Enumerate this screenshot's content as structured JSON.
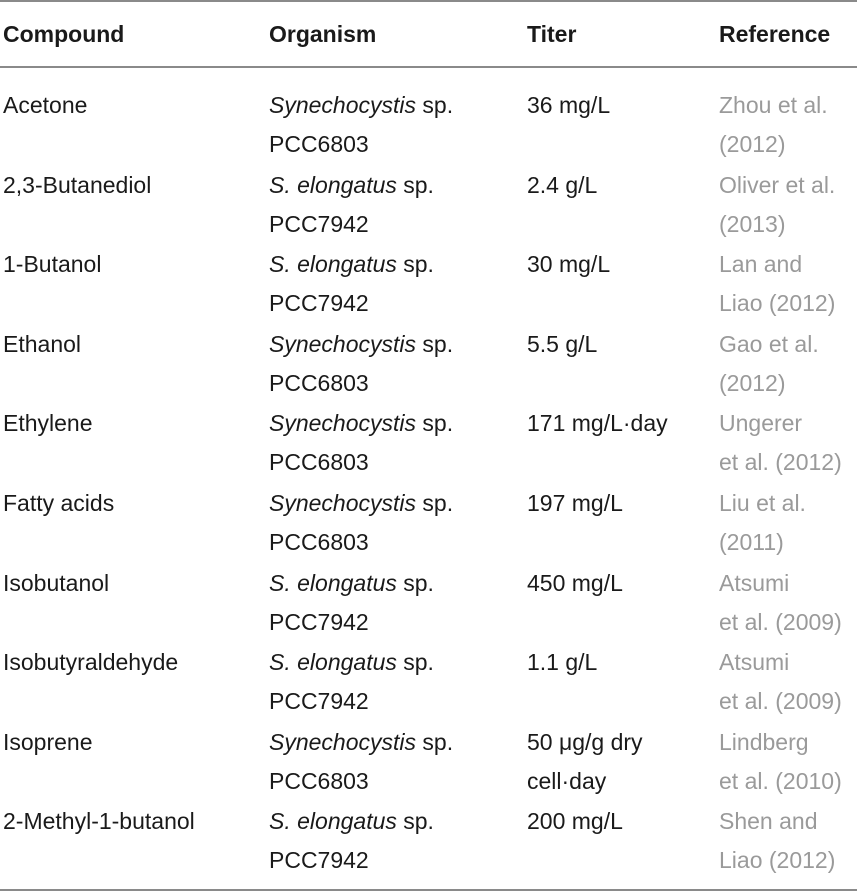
{
  "headers": {
    "compound": "Compound",
    "organism": "Organism",
    "titer": "Titer",
    "reference": "Reference"
  },
  "rows": [
    {
      "compound": "Acetone",
      "organism_genus": "Synechocystis",
      "organism_suffix": " sp.",
      "organism_strain": "PCC6803",
      "titer_1": "36 mg/L",
      "titer_2": "",
      "ref_1": "Zhou et al.",
      "ref_2": "(2012)"
    },
    {
      "compound": "2,3-Butanediol",
      "organism_genus": "S. elongatus",
      "organism_suffix": " sp.",
      "organism_strain": "PCC7942",
      "titer_1": "2.4 g/L",
      "titer_2": "",
      "ref_1": "Oliver et al.",
      "ref_2": "(2013)"
    },
    {
      "compound": "1-Butanol",
      "organism_genus": "S. elongatus",
      "organism_suffix": " sp.",
      "organism_strain": "PCC7942",
      "titer_1": "30 mg/L",
      "titer_2": "",
      "ref_1": "Lan and",
      "ref_2": "Liao (2012)"
    },
    {
      "compound": "Ethanol",
      "organism_genus": "Synechocystis",
      "organism_suffix": " sp.",
      "organism_strain": "PCC6803",
      "titer_1": "5.5 g/L",
      "titer_2": "",
      "ref_1": "Gao et al.",
      "ref_2": "(2012)"
    },
    {
      "compound": "Ethylene",
      "organism_genus": "Synechocystis",
      "organism_suffix": " sp.",
      "organism_strain": "PCC6803",
      "titer_1": "171 mg/L·day",
      "titer_2": "",
      "ref_1": "Ungerer",
      "ref_2": "et al. (2012)"
    },
    {
      "compound": "Fatty acids",
      "organism_genus": "Synechocystis",
      "organism_suffix": " sp.",
      "organism_strain": "PCC6803",
      "titer_1": "197 mg/L",
      "titer_2": "",
      "ref_1": "Liu et al.",
      "ref_2": "(2011)"
    },
    {
      "compound": "Isobutanol",
      "organism_genus": "S. elongatus",
      "organism_suffix": " sp.",
      "organism_strain": "PCC7942",
      "titer_1": "450 mg/L",
      "titer_2": "",
      "ref_1": "Atsumi",
      "ref_2": "et al. (2009)"
    },
    {
      "compound": "Isobutyraldehyde",
      "organism_genus": "S. elongatus",
      "organism_suffix": " sp.",
      "organism_strain": "PCC7942",
      "titer_1": "1.1 g/L",
      "titer_2": "",
      "ref_1": "Atsumi",
      "ref_2": "et al. (2009)"
    },
    {
      "compound": "Isoprene",
      "organism_genus": "Synechocystis",
      "organism_suffix": " sp.",
      "organism_strain": "PCC6803",
      "titer_1": "50 μg/g dry",
      "titer_2": "cell·day",
      "ref_1": "Lindberg",
      "ref_2": "et al. (2010)"
    },
    {
      "compound": "2-Methyl-1-butanol",
      "organism_genus": "S. elongatus",
      "organism_suffix": " sp.",
      "organism_strain": "PCC7942",
      "titer_1": "200 mg/L",
      "titer_2": "",
      "ref_1": "Shen and",
      "ref_2": "Liao (2012)"
    }
  ]
}
